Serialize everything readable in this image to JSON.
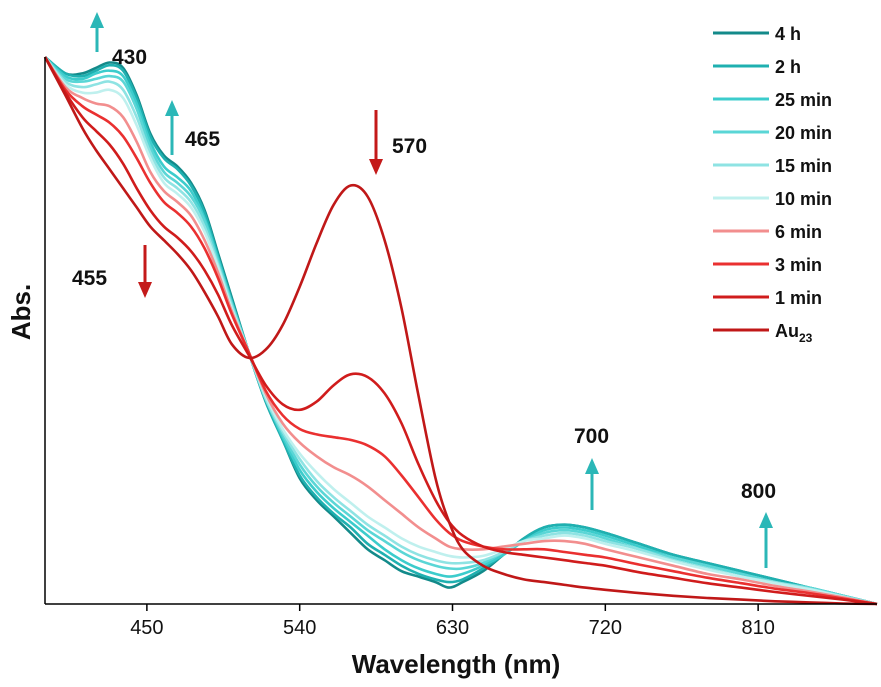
{
  "chart_data": {
    "type": "line",
    "xlabel": "Wavelength (nm)",
    "ylabel": "Abs.",
    "xlim": [
      390,
      880
    ],
    "ylim": [
      0,
      1
    ],
    "x_ticks": [
      450,
      540,
      630,
      720,
      810
    ],
    "grid": false,
    "legend_position": "top-right",
    "colors": {
      "4 h": "#138a8a",
      "2 h": "#1fb0b0",
      "25 min": "#3ccccc",
      "20 min": "#5ad6d6",
      "15 min": "#8ee3e3",
      "10 min": "#bff0ee",
      "6 min": "#f28e8e",
      "3 min": "#ea3030",
      "1 min": "#d01c1c",
      "Au23": "#c01818",
      "arrow_up": "#2bb7b7",
      "arrow_down": "#c41a1a"
    },
    "series": [
      {
        "name": "4 h",
        "x": [
          390,
          402,
          412,
          420,
          428,
          436,
          444,
          452,
          460,
          468,
          476,
          484,
          492,
          500,
          510,
          520,
          530,
          540,
          550,
          560,
          570,
          580,
          590,
          600,
          610,
          620,
          628,
          636,
          648,
          660,
          672,
          684,
          696,
          708,
          720,
          740,
          760,
          780,
          800,
          820,
          840,
          860,
          880
        ],
        "y": [
          1.0,
          0.97,
          0.97,
          0.98,
          0.99,
          0.98,
          0.93,
          0.86,
          0.82,
          0.8,
          0.77,
          0.72,
          0.64,
          0.56,
          0.46,
          0.37,
          0.3,
          0.23,
          0.19,
          0.16,
          0.13,
          0.1,
          0.08,
          0.06,
          0.05,
          0.04,
          0.03,
          0.04,
          0.06,
          0.09,
          0.12,
          0.14,
          0.145,
          0.14,
          0.13,
          0.11,
          0.09,
          0.075,
          0.06,
          0.045,
          0.03,
          0.015,
          0.0
        ]
      },
      {
        "name": "2 h",
        "x": [
          390,
          402,
          412,
          420,
          428,
          436,
          444,
          452,
          460,
          468,
          476,
          484,
          492,
          500,
          510,
          520,
          530,
          540,
          550,
          560,
          570,
          580,
          590,
          600,
          610,
          620,
          628,
          636,
          648,
          660,
          672,
          684,
          696,
          708,
          720,
          740,
          760,
          780,
          800,
          820,
          840,
          860,
          880
        ],
        "y": [
          1.0,
          0.97,
          0.965,
          0.975,
          0.985,
          0.975,
          0.925,
          0.855,
          0.815,
          0.795,
          0.765,
          0.715,
          0.635,
          0.555,
          0.46,
          0.37,
          0.3,
          0.235,
          0.195,
          0.165,
          0.14,
          0.11,
          0.09,
          0.07,
          0.055,
          0.045,
          0.04,
          0.045,
          0.065,
          0.09,
          0.12,
          0.14,
          0.145,
          0.14,
          0.13,
          0.11,
          0.09,
          0.075,
          0.06,
          0.045,
          0.03,
          0.015,
          0.0
        ]
      },
      {
        "name": "25 min",
        "x": [
          390,
          402,
          412,
          420,
          428,
          436,
          444,
          452,
          460,
          468,
          476,
          484,
          492,
          500,
          510,
          520,
          530,
          540,
          550,
          560,
          570,
          580,
          590,
          600,
          610,
          620,
          628,
          636,
          648,
          660,
          672,
          684,
          696,
          708,
          720,
          740,
          760,
          780,
          800,
          820,
          840,
          860,
          880
        ],
        "y": [
          1.0,
          0.965,
          0.96,
          0.97,
          0.975,
          0.965,
          0.915,
          0.845,
          0.8,
          0.78,
          0.755,
          0.705,
          0.63,
          0.55,
          0.46,
          0.375,
          0.305,
          0.245,
          0.205,
          0.175,
          0.15,
          0.125,
          0.1,
          0.08,
          0.065,
          0.055,
          0.05,
          0.055,
          0.07,
          0.09,
          0.115,
          0.135,
          0.14,
          0.135,
          0.125,
          0.105,
          0.085,
          0.07,
          0.055,
          0.04,
          0.03,
          0.015,
          0.0
        ]
      },
      {
        "name": "20 min",
        "x": [
          390,
          402,
          412,
          420,
          428,
          436,
          444,
          452,
          460,
          468,
          476,
          484,
          492,
          500,
          510,
          520,
          530,
          540,
          550,
          560,
          570,
          580,
          590,
          600,
          610,
          620,
          628,
          636,
          648,
          660,
          672,
          684,
          696,
          708,
          720,
          740,
          760,
          780,
          800,
          820,
          840,
          860,
          880
        ],
        "y": [
          1.0,
          0.96,
          0.955,
          0.96,
          0.965,
          0.955,
          0.905,
          0.835,
          0.79,
          0.77,
          0.745,
          0.7,
          0.625,
          0.55,
          0.46,
          0.375,
          0.31,
          0.255,
          0.215,
          0.185,
          0.16,
          0.135,
          0.115,
          0.095,
          0.08,
          0.07,
          0.065,
          0.065,
          0.075,
          0.095,
          0.115,
          0.13,
          0.135,
          0.13,
          0.12,
          0.1,
          0.085,
          0.07,
          0.055,
          0.04,
          0.03,
          0.015,
          0.0
        ]
      },
      {
        "name": "15 min",
        "x": [
          390,
          402,
          412,
          420,
          428,
          436,
          444,
          452,
          460,
          468,
          476,
          484,
          492,
          500,
          510,
          520,
          530,
          540,
          550,
          560,
          570,
          580,
          590,
          600,
          610,
          620,
          628,
          636,
          648,
          660,
          672,
          684,
          696,
          708,
          720,
          740,
          760,
          780,
          800,
          820,
          840,
          860,
          880
        ],
        "y": [
          1.0,
          0.955,
          0.945,
          0.95,
          0.955,
          0.94,
          0.89,
          0.825,
          0.78,
          0.76,
          0.735,
          0.69,
          0.62,
          0.545,
          0.46,
          0.375,
          0.315,
          0.265,
          0.225,
          0.195,
          0.17,
          0.145,
          0.125,
          0.105,
          0.09,
          0.08,
          0.075,
          0.075,
          0.08,
          0.095,
          0.115,
          0.125,
          0.13,
          0.125,
          0.115,
          0.1,
          0.08,
          0.065,
          0.05,
          0.04,
          0.028,
          0.014,
          0.0
        ]
      },
      {
        "name": "10 min",
        "x": [
          390,
          402,
          412,
          420,
          428,
          436,
          444,
          452,
          460,
          468,
          476,
          484,
          492,
          500,
          510,
          520,
          530,
          540,
          550,
          560,
          570,
          580,
          590,
          600,
          610,
          620,
          628,
          636,
          648,
          660,
          672,
          684,
          696,
          708,
          720,
          740,
          760,
          780,
          800,
          820,
          840,
          860,
          880
        ],
        "y": [
          1.0,
          0.95,
          0.935,
          0.935,
          0.94,
          0.925,
          0.875,
          0.815,
          0.77,
          0.75,
          0.725,
          0.68,
          0.615,
          0.54,
          0.46,
          0.38,
          0.32,
          0.275,
          0.24,
          0.21,
          0.185,
          0.16,
          0.14,
          0.12,
          0.105,
          0.095,
          0.088,
          0.085,
          0.088,
          0.1,
          0.115,
          0.12,
          0.125,
          0.12,
          0.11,
          0.095,
          0.078,
          0.063,
          0.05,
          0.038,
          0.027,
          0.013,
          0.0
        ]
      },
      {
        "name": "6 min",
        "x": [
          390,
          402,
          412,
          420,
          428,
          436,
          444,
          452,
          460,
          468,
          476,
          484,
          492,
          500,
          510,
          520,
          530,
          540,
          550,
          560,
          570,
          580,
          590,
          600,
          610,
          620,
          628,
          636,
          648,
          660,
          672,
          684,
          696,
          708,
          720,
          740,
          760,
          780,
          800,
          820,
          840,
          860,
          880
        ],
        "y": [
          1.0,
          0.945,
          0.925,
          0.915,
          0.91,
          0.89,
          0.845,
          0.79,
          0.755,
          0.735,
          0.71,
          0.665,
          0.605,
          0.535,
          0.46,
          0.385,
          0.33,
          0.295,
          0.27,
          0.25,
          0.235,
          0.215,
          0.19,
          0.165,
          0.14,
          0.12,
          0.105,
          0.1,
          0.1,
          0.105,
          0.11,
          0.115,
          0.115,
          0.11,
          0.1,
          0.085,
          0.07,
          0.055,
          0.045,
          0.033,
          0.023,
          0.012,
          0.0
        ]
      },
      {
        "name": "3 min",
        "x": [
          390,
          402,
          412,
          420,
          428,
          436,
          444,
          452,
          460,
          468,
          476,
          484,
          492,
          500,
          510,
          520,
          530,
          540,
          550,
          560,
          570,
          580,
          590,
          600,
          610,
          620,
          628,
          636,
          648,
          660,
          672,
          684,
          696,
          708,
          720,
          740,
          760,
          780,
          800,
          820,
          840,
          860,
          880
        ],
        "y": [
          1.0,
          0.94,
          0.91,
          0.895,
          0.88,
          0.855,
          0.815,
          0.77,
          0.735,
          0.715,
          0.69,
          0.65,
          0.595,
          0.53,
          0.46,
          0.39,
          0.345,
          0.32,
          0.31,
          0.305,
          0.3,
          0.29,
          0.27,
          0.235,
          0.195,
          0.155,
          0.13,
          0.115,
          0.105,
          0.1,
          0.1,
          0.1,
          0.095,
          0.09,
          0.085,
          0.072,
          0.06,
          0.048,
          0.038,
          0.028,
          0.02,
          0.01,
          0.0
        ]
      },
      {
        "name": "1 min",
        "x": [
          390,
          402,
          412,
          420,
          428,
          436,
          444,
          452,
          460,
          468,
          476,
          484,
          492,
          500,
          510,
          520,
          530,
          540,
          550,
          560,
          570,
          580,
          590,
          600,
          610,
          620,
          628,
          636,
          648,
          660,
          672,
          684,
          696,
          708,
          720,
          740,
          760,
          780,
          800,
          820,
          840,
          860,
          880
        ],
        "y": [
          1.0,
          0.935,
          0.89,
          0.865,
          0.84,
          0.805,
          0.76,
          0.72,
          0.69,
          0.67,
          0.645,
          0.61,
          0.565,
          0.51,
          0.455,
          0.4,
          0.365,
          0.355,
          0.37,
          0.4,
          0.42,
          0.415,
          0.385,
          0.33,
          0.255,
          0.19,
          0.15,
          0.125,
          0.105,
          0.095,
          0.09,
          0.085,
          0.08,
          0.075,
          0.07,
          0.058,
          0.048,
          0.038,
          0.03,
          0.022,
          0.015,
          0.008,
          0.0
        ]
      },
      {
        "name": "Au23",
        "x": [
          390,
          402,
          412,
          420,
          428,
          436,
          444,
          452,
          460,
          468,
          476,
          484,
          492,
          500,
          510,
          520,
          530,
          540,
          550,
          560,
          570,
          580,
          590,
          600,
          610,
          620,
          628,
          636,
          648,
          660,
          672,
          684,
          696,
          708,
          720,
          740,
          760,
          780,
          800,
          820,
          840,
          860,
          880
        ],
        "y": [
          1.0,
          0.93,
          0.87,
          0.83,
          0.795,
          0.76,
          0.725,
          0.69,
          0.665,
          0.64,
          0.61,
          0.57,
          0.525,
          0.475,
          0.45,
          0.465,
          0.51,
          0.58,
          0.66,
          0.73,
          0.765,
          0.745,
          0.665,
          0.54,
          0.38,
          0.23,
          0.15,
          0.1,
          0.07,
          0.055,
          0.045,
          0.04,
          0.035,
          0.03,
          0.026,
          0.02,
          0.015,
          0.011,
          0.008,
          0.005,
          0.003,
          0.001,
          0.0
        ]
      }
    ],
    "annotations": [
      {
        "text": "430",
        "direction": "up",
        "wavelength": 430
      },
      {
        "text": "465",
        "direction": "up",
        "wavelength": 465
      },
      {
        "text": "455",
        "direction": "down",
        "wavelength": 455
      },
      {
        "text": "570",
        "direction": "down",
        "wavelength": 570
      },
      {
        "text": "700",
        "direction": "up",
        "wavelength": 700
      },
      {
        "text": "800",
        "direction": "up",
        "wavelength": 800
      }
    ]
  }
}
